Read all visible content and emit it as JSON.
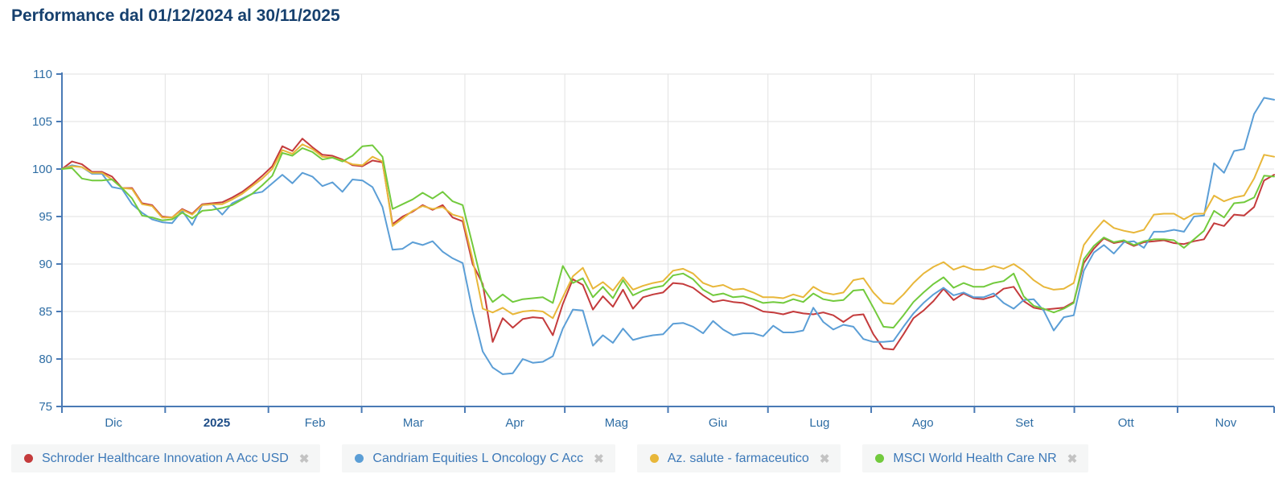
{
  "title": "Performance dal 01/12/2024 al 30/11/2025",
  "legend": {
    "remove_icon": "✖"
  },
  "chart_data": {
    "type": "line",
    "title": "Performance dal 01/12/2024 al 30/11/2025",
    "x_start": "01/12/2024",
    "x_end": "30/11/2025",
    "x_step_days": 3,
    "x_max_day": 364,
    "ylim": [
      75,
      110
    ],
    "yticks": [
      75,
      80,
      85,
      90,
      95,
      100,
      105,
      110
    ],
    "grid": "on",
    "legend_position": "bottom",
    "month_boundaries_days": [
      0,
      31,
      62,
      90,
      121,
      151,
      182,
      212,
      243,
      274,
      304,
      335,
      364
    ],
    "x_tick_labels": [
      {
        "label": "Dic",
        "bold": false
      },
      {
        "label": "2025",
        "bold": true
      },
      {
        "label": "Feb",
        "bold": false
      },
      {
        "label": "Mar",
        "bold": false
      },
      {
        "label": "Apr",
        "bold": false
      },
      {
        "label": "Mag",
        "bold": false
      },
      {
        "label": "Giu",
        "bold": false
      },
      {
        "label": "Lug",
        "bold": false
      },
      {
        "label": "Ago",
        "bold": false
      },
      {
        "label": "Set",
        "bold": false
      },
      {
        "label": "Ott",
        "bold": false
      },
      {
        "label": "Nov",
        "bold": false
      }
    ],
    "series": [
      {
        "name": "Schroder Healthcare Innovation A Acc USD",
        "color": "#c43b3c",
        "values": [
          100,
          100.8,
          100.5,
          99.7,
          99.7,
          99.2,
          98,
          98,
          96.4,
          96.2,
          95,
          94.9,
          95.8,
          95.3,
          96.3,
          96.4,
          96.5,
          97,
          97.6,
          98.4,
          99.3,
          100.3,
          102.4,
          101.9,
          103.2,
          102.3,
          101.5,
          101.4,
          101,
          100.4,
          100.3,
          100.9,
          100.7,
          94.2,
          95,
          95.5,
          96.2,
          95.7,
          96.2,
          94.9,
          94.5,
          90,
          87.9,
          81.8,
          84.3,
          83.3,
          84.2,
          84.4,
          84.3,
          82.5,
          85.8,
          88.4,
          87.8,
          85.2,
          86.6,
          85.5,
          87.3,
          85.3,
          86.5,
          86.8,
          87,
          88,
          87.9,
          87.5,
          86.7,
          86,
          86.2,
          86,
          85.9,
          85.5,
          85,
          84.9,
          84.7,
          85,
          84.8,
          84.7,
          84.9,
          84.6,
          83.9,
          84.6,
          84.7,
          82.6,
          81.1,
          81,
          82.6,
          84.3,
          85.1,
          86.1,
          87.4,
          86.2,
          86.9,
          86.4,
          86.3,
          86.6,
          87.4,
          87.6,
          86.1,
          85.4,
          85.2,
          85.3,
          85.4,
          86,
          90.1,
          91.6,
          92.7,
          92.2,
          92.4,
          91.9,
          92.3,
          92.4,
          92.5,
          92.2,
          92.1,
          92.4,
          92.6,
          94.3,
          94,
          95.2,
          95.1,
          96,
          98.8,
          99.4
        ]
      },
      {
        "name": "Candriam Equities L Oncology C Acc",
        "color": "#5b9ed6",
        "values": [
          100,
          100.4,
          100.2,
          99.5,
          99.5,
          98.1,
          97.9,
          96.3,
          95.4,
          94.7,
          94.4,
          94.3,
          95.6,
          94.1,
          96.2,
          96.3,
          95.2,
          96.4,
          96.9,
          97.4,
          97.6,
          98.5,
          99.4,
          98.5,
          99.6,
          99.2,
          98.2,
          98.6,
          97.6,
          98.9,
          98.8,
          98.1,
          96,
          91.5,
          91.6,
          92.3,
          92,
          92.4,
          91.3,
          90.6,
          90.1,
          85,
          80.8,
          79.1,
          78.4,
          78.5,
          80,
          79.6,
          79.7,
          80.3,
          83.2,
          85.2,
          85.1,
          81.4,
          82.5,
          81.7,
          83.2,
          82,
          82.3,
          82.5,
          82.6,
          83.7,
          83.8,
          83.4,
          82.7,
          84,
          83.1,
          82.5,
          82.7,
          82.7,
          82.4,
          83.5,
          82.8,
          82.8,
          83,
          85.4,
          83.9,
          83.1,
          83.6,
          83.4,
          82.1,
          81.8,
          81.8,
          81.9,
          83.4,
          84.8,
          85.9,
          86.8,
          87.5,
          86.7,
          87,
          86.5,
          86.5,
          86.9,
          85.9,
          85.3,
          86.2,
          86.3,
          85.1,
          83,
          84.4,
          84.6,
          89.3,
          91.2,
          92,
          91.1,
          92.3,
          92.4,
          91.7,
          93.4,
          93.4,
          93.6,
          93.4,
          95,
          95.1,
          100.6,
          99.6,
          101.9,
          102.1,
          105.8,
          107.5,
          107.3
        ]
      },
      {
        "name": "Az. salute - farmaceutico",
        "color": "#e8b73a",
        "values": [
          100,
          100.3,
          100.2,
          99.6,
          99.6,
          98.9,
          98,
          97.9,
          96.3,
          96.1,
          94.9,
          94.9,
          95.7,
          95.2,
          96.2,
          96.3,
          96.3,
          96.8,
          97.4,
          98.2,
          99,
          100,
          102,
          101.6,
          102.6,
          102.1,
          101.3,
          101.2,
          100.9,
          100.5,
          100.4,
          101.3,
          100.8,
          94,
          94.8,
          95.6,
          96.1,
          95.8,
          96,
          95.2,
          94.9,
          90.5,
          85.3,
          84.9,
          85.4,
          84.7,
          85,
          85.1,
          85,
          84.3,
          86.5,
          88.7,
          89.6,
          87.4,
          88.1,
          87.2,
          88.6,
          87.3,
          87.7,
          88,
          88.2,
          89.3,
          89.5,
          89,
          88,
          87.6,
          87.8,
          87.3,
          87.4,
          87,
          86.5,
          86.5,
          86.4,
          86.8,
          86.5,
          87.6,
          87,
          86.8,
          87,
          88.3,
          88.5,
          87,
          85.9,
          85.8,
          86.8,
          88,
          89,
          89.7,
          90.2,
          89.4,
          89.8,
          89.4,
          89.4,
          89.8,
          89.5,
          90,
          89.3,
          88.3,
          87.6,
          87.3,
          87.4,
          88,
          92,
          93.4,
          94.6,
          93.8,
          93.5,
          93.3,
          93.6,
          95.2,
          95.3,
          95.3,
          94.7,
          95.3,
          95.3,
          97.2,
          96.6,
          97,
          97.2,
          99,
          101.5,
          101.3
        ]
      },
      {
        "name": "MSCI World Health Care NR",
        "color": "#72ca3d",
        "values": [
          100,
          100.1,
          99,
          98.8,
          98.8,
          98.9,
          98,
          96.9,
          95.1,
          94.9,
          94.6,
          94.7,
          95.4,
          94.8,
          95.6,
          95.7,
          95.9,
          96.2,
          96.8,
          97.4,
          98.3,
          99.3,
          101.7,
          101.4,
          102.2,
          101.8,
          101,
          101.2,
          100.8,
          101.4,
          102.4,
          102.5,
          101.3,
          95.8,
          96.3,
          96.8,
          97.5,
          96.9,
          97.6,
          96.6,
          96.2,
          92,
          87.6,
          86,
          86.8,
          86,
          86.3,
          86.4,
          86.5,
          85.9,
          89.8,
          88,
          88.5,
          86.5,
          87.6,
          86.4,
          88.3,
          86.7,
          87.2,
          87.5,
          87.7,
          88.8,
          89,
          88.4,
          87.3,
          86.7,
          86.9,
          86.5,
          86.6,
          86.3,
          85.9,
          86,
          85.9,
          86.3,
          86,
          86.9,
          86.3,
          86.1,
          86.2,
          87.2,
          87.3,
          85.4,
          83.4,
          83.3,
          84.6,
          86,
          87,
          87.9,
          88.6,
          87.5,
          88,
          87.6,
          87.6,
          88,
          88.2,
          89,
          86.6,
          85.6,
          85.3,
          84.9,
          85.3,
          85.9,
          90.5,
          91.9,
          92.8,
          92.3,
          92.5,
          92,
          92.4,
          92.6,
          92.6,
          92.5,
          91.7,
          92.6,
          93.5,
          95.6,
          94.9,
          96.4,
          96.5,
          97,
          99.3,
          99.2
        ]
      }
    ]
  }
}
